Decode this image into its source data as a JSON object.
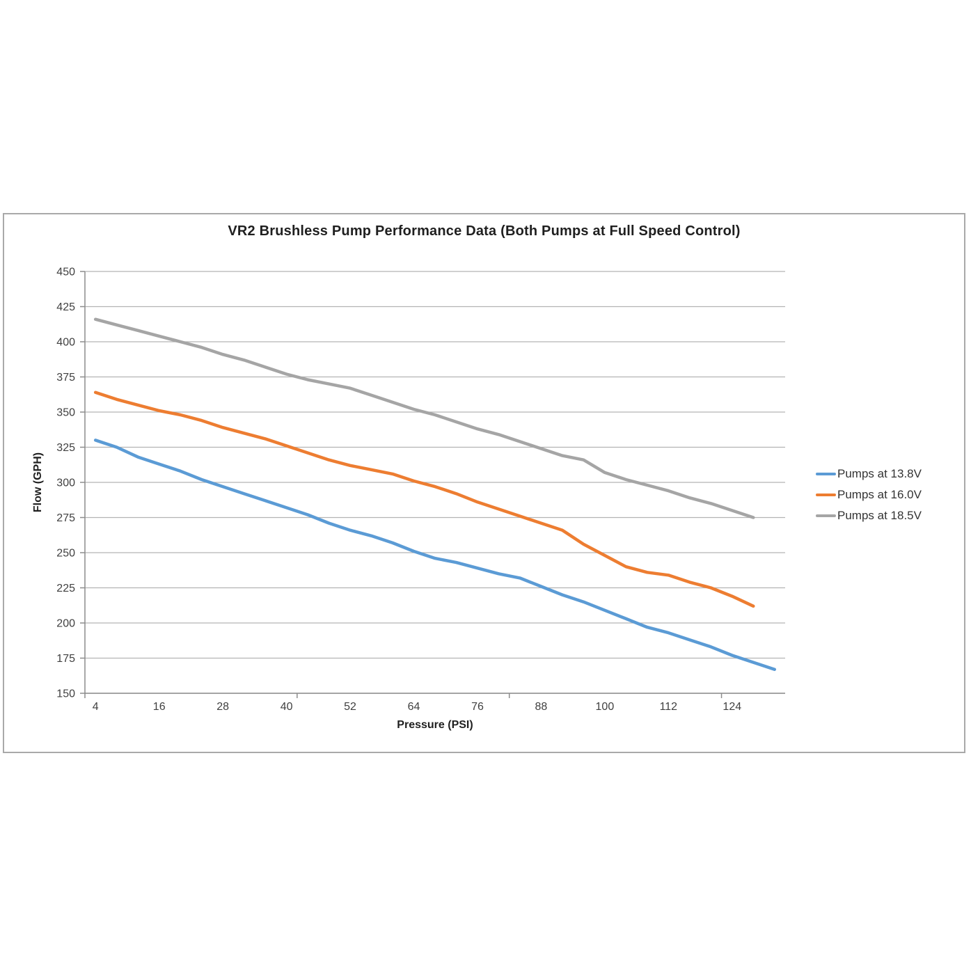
{
  "chart_data": {
    "type": "line",
    "title": "VR2 Brushless Pump Performance Data (Both Pumps at Full Speed Control)",
    "xlabel": "Pressure (PSI)",
    "ylabel": "Flow (GPH)",
    "ylim": [
      150,
      450
    ],
    "y_ticks": [
      150,
      175,
      200,
      225,
      250,
      275,
      300,
      325,
      350,
      375,
      400,
      425,
      450
    ],
    "x_tick_labels": [
      4,
      16,
      28,
      40,
      52,
      64,
      76,
      88,
      100,
      112,
      124
    ],
    "x_categories_start": 4,
    "x_categories_step": 4,
    "x_slots": 33,
    "x_boundary_tick_interval": 10,
    "grid": "horizontal",
    "legend_position": "right",
    "colors": {
      "axis": "#8c8c8c",
      "gridline": "#b3b3b3",
      "tick_text": "#404040",
      "title_text": "#1f1f1f"
    },
    "series": [
      {
        "name": "Pumps at 13.8V",
        "color": "#5B9BD5",
        "x": [
          4,
          8,
          12,
          16,
          20,
          24,
          28,
          32,
          36,
          40,
          44,
          48,
          52,
          56,
          60,
          64,
          68,
          72,
          76,
          80,
          84,
          88,
          92,
          96,
          100,
          104,
          108,
          112,
          116,
          120,
          124,
          128,
          132
        ],
        "values": [
          330,
          325,
          318,
          313,
          308,
          302,
          297,
          292,
          287,
          282,
          277,
          271,
          266,
          262,
          257,
          251,
          246,
          243,
          239,
          235,
          232,
          226,
          220,
          215,
          209,
          203,
          197,
          193,
          188,
          183,
          177,
          172,
          167
        ]
      },
      {
        "name": "Pumps at 16.0V",
        "color": "#ED7D31",
        "x": [
          4,
          8,
          12,
          16,
          20,
          24,
          28,
          32,
          36,
          40,
          44,
          48,
          52,
          56,
          60,
          64,
          68,
          72,
          76,
          80,
          84,
          88,
          92,
          96,
          100,
          104,
          108,
          112,
          116,
          120,
          124,
          128
        ],
        "values": [
          364,
          359,
          355,
          351,
          348,
          344,
          339,
          335,
          331,
          326,
          321,
          316,
          312,
          309,
          306,
          301,
          297,
          292,
          286,
          281,
          276,
          271,
          266,
          256,
          248,
          240,
          236,
          234,
          229,
          225,
          219,
          212
        ]
      },
      {
        "name": "Pumps at 18.5V",
        "color": "#A5A5A5",
        "x": [
          4,
          8,
          12,
          16,
          20,
          24,
          28,
          32,
          36,
          40,
          44,
          48,
          52,
          56,
          60,
          64,
          68,
          72,
          76,
          80,
          84,
          88,
          92,
          96,
          100,
          104,
          108,
          112,
          116,
          120,
          124,
          128
        ],
        "values": [
          416,
          412,
          408,
          404,
          400,
          396,
          391,
          387,
          382,
          377,
          373,
          370,
          367,
          362,
          357,
          352,
          348,
          343,
          338,
          334,
          329,
          324,
          319,
          316,
          307,
          302,
          298,
          294,
          289,
          285,
          280,
          275
        ]
      }
    ]
  }
}
